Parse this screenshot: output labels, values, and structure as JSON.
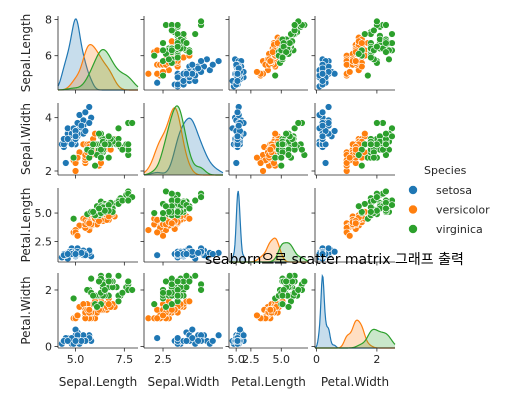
{
  "chart_data": {
    "type": "scatter",
    "subtype": "pairplot",
    "title": "seaborn으로 scatter matrix 그래프 출력",
    "variables": [
      "Sepal.Length",
      "Sepal.Width",
      "Petal.Length",
      "Petal.Width"
    ],
    "diagonal": "kde",
    "legend": {
      "title": "Species",
      "placement": "right",
      "entries": [
        "setosa",
        "versicolor",
        "virginica"
      ]
    },
    "colors": {
      "setosa": "#1f77b4",
      "versicolor": "#ff7f0e",
      "virginica": "#2ca02c"
    },
    "axes": {
      "Sepal.Length": {
        "range": [
          4.1,
          8.2
        ],
        "ticks": [
          5.0,
          7.5
        ],
        "tick_labels": [
          "5.0",
          "7.5"
        ],
        "row_ticks": [
          6,
          8
        ],
        "row_tick_labels": [
          "6",
          "8"
        ]
      },
      "Sepal.Width": {
        "range": [
          1.85,
          4.55
        ],
        "ticks": [
          2.5,
          5.0
        ],
        "tick_labels": [
          "2.5",
          "5.0"
        ],
        "row_ticks": [
          2,
          4
        ],
        "row_tick_labels": [
          "2",
          "4"
        ]
      },
      "Petal.Length": {
        "range": [
          0.7,
          7.2
        ],
        "ticks": [
          2.5,
          5.0
        ],
        "tick_labels": [
          "2.5",
          "5.0"
        ],
        "row_ticks": [
          2.5,
          5.0
        ],
        "row_tick_labels": [
          "2.5",
          "5.0"
        ]
      },
      "Petal.Width": {
        "range": [
          -0.05,
          2.6
        ],
        "ticks": [
          0,
          2
        ],
        "tick_labels": [
          "0",
          "2"
        ],
        "row_ticks": [
          0,
          2
        ],
        "row_tick_labels": [
          "0",
          "2"
        ]
      }
    },
    "series": [
      {
        "name": "setosa",
        "points": [
          [
            5.1,
            3.5,
            1.4,
            0.2
          ],
          [
            4.9,
            3.0,
            1.4,
            0.2
          ],
          [
            4.7,
            3.2,
            1.3,
            0.2
          ],
          [
            4.6,
            3.1,
            1.5,
            0.2
          ],
          [
            5.0,
            3.6,
            1.4,
            0.2
          ],
          [
            5.4,
            3.9,
            1.7,
            0.4
          ],
          [
            4.6,
            3.4,
            1.4,
            0.3
          ],
          [
            5.0,
            3.4,
            1.5,
            0.2
          ],
          [
            4.4,
            2.9,
            1.4,
            0.2
          ],
          [
            4.9,
            3.1,
            1.5,
            0.1
          ],
          [
            5.4,
            3.7,
            1.5,
            0.2
          ],
          [
            4.8,
            3.4,
            1.6,
            0.2
          ],
          [
            4.8,
            3.0,
            1.4,
            0.1
          ],
          [
            4.3,
            3.0,
            1.1,
            0.1
          ],
          [
            5.8,
            4.0,
            1.2,
            0.2
          ],
          [
            5.7,
            4.4,
            1.5,
            0.4
          ],
          [
            5.4,
            3.9,
            1.3,
            0.4
          ],
          [
            5.1,
            3.5,
            1.4,
            0.3
          ],
          [
            5.7,
            3.8,
            1.7,
            0.3
          ],
          [
            5.1,
            3.8,
            1.5,
            0.3
          ],
          [
            5.4,
            3.4,
            1.7,
            0.2
          ],
          [
            5.1,
            3.7,
            1.5,
            0.4
          ],
          [
            4.6,
            3.6,
            1.0,
            0.2
          ],
          [
            5.1,
            3.3,
            1.7,
            0.5
          ],
          [
            4.8,
            3.4,
            1.9,
            0.2
          ],
          [
            5.0,
            3.0,
            1.6,
            0.2
          ],
          [
            5.0,
            3.4,
            1.6,
            0.4
          ],
          [
            5.2,
            3.5,
            1.5,
            0.2
          ],
          [
            5.2,
            3.4,
            1.4,
            0.2
          ],
          [
            4.7,
            3.2,
            1.6,
            0.2
          ],
          [
            4.8,
            3.1,
            1.6,
            0.2
          ],
          [
            5.4,
            3.4,
            1.5,
            0.4
          ],
          [
            5.2,
            4.1,
            1.5,
            0.1
          ],
          [
            5.5,
            4.2,
            1.4,
            0.2
          ],
          [
            4.9,
            3.1,
            1.5,
            0.2
          ],
          [
            5.0,
            3.2,
            1.2,
            0.2
          ],
          [
            5.5,
            3.5,
            1.3,
            0.2
          ],
          [
            4.9,
            3.6,
            1.4,
            0.1
          ],
          [
            4.4,
            3.0,
            1.3,
            0.2
          ],
          [
            5.1,
            3.4,
            1.5,
            0.2
          ],
          [
            5.0,
            3.5,
            1.3,
            0.3
          ],
          [
            4.5,
            2.3,
            1.3,
            0.3
          ],
          [
            4.4,
            3.2,
            1.3,
            0.2
          ],
          [
            5.0,
            3.5,
            1.6,
            0.6
          ],
          [
            5.1,
            3.8,
            1.9,
            0.4
          ],
          [
            4.8,
            3.0,
            1.4,
            0.3
          ],
          [
            5.1,
            3.8,
            1.6,
            0.2
          ],
          [
            4.6,
            3.2,
            1.4,
            0.2
          ],
          [
            5.3,
            3.7,
            1.5,
            0.2
          ],
          [
            5.0,
            3.3,
            1.4,
            0.2
          ]
        ]
      },
      {
        "name": "versicolor",
        "points": [
          [
            7.0,
            3.2,
            4.7,
            1.4
          ],
          [
            6.4,
            3.2,
            4.5,
            1.5
          ],
          [
            6.9,
            3.1,
            4.9,
            1.5
          ],
          [
            5.5,
            2.3,
            4.0,
            1.3
          ],
          [
            6.5,
            2.8,
            4.6,
            1.5
          ],
          [
            5.7,
            2.8,
            4.5,
            1.3
          ],
          [
            6.3,
            3.3,
            4.7,
            1.6
          ],
          [
            4.9,
            2.4,
            3.3,
            1.0
          ],
          [
            6.6,
            2.9,
            4.6,
            1.3
          ],
          [
            5.2,
            2.7,
            3.9,
            1.4
          ],
          [
            5.0,
            2.0,
            3.5,
            1.0
          ],
          [
            5.9,
            3.0,
            4.2,
            1.5
          ],
          [
            6.0,
            2.2,
            4.0,
            1.0
          ],
          [
            6.1,
            2.9,
            4.7,
            1.4
          ],
          [
            5.6,
            2.9,
            3.6,
            1.3
          ],
          [
            6.7,
            3.1,
            4.4,
            1.4
          ],
          [
            5.6,
            3.0,
            4.5,
            1.5
          ],
          [
            5.8,
            2.7,
            4.1,
            1.0
          ],
          [
            6.2,
            2.2,
            4.5,
            1.5
          ],
          [
            5.6,
            2.5,
            3.9,
            1.1
          ],
          [
            5.9,
            3.2,
            4.8,
            1.8
          ],
          [
            6.1,
            2.8,
            4.0,
            1.3
          ],
          [
            6.3,
            2.5,
            4.9,
            1.5
          ],
          [
            6.1,
            2.8,
            4.7,
            1.2
          ],
          [
            6.4,
            2.9,
            4.3,
            1.3
          ],
          [
            6.6,
            3.0,
            4.4,
            1.4
          ],
          [
            6.8,
            2.8,
            4.8,
            1.4
          ],
          [
            6.7,
            3.0,
            5.0,
            1.7
          ],
          [
            6.0,
            2.9,
            4.5,
            1.5
          ],
          [
            5.7,
            2.6,
            3.5,
            1.0
          ],
          [
            5.5,
            2.4,
            3.8,
            1.1
          ],
          [
            5.5,
            2.4,
            3.7,
            1.0
          ],
          [
            5.8,
            2.7,
            3.9,
            1.2
          ],
          [
            6.0,
            2.7,
            5.1,
            1.6
          ],
          [
            5.4,
            3.0,
            4.5,
            1.5
          ],
          [
            6.0,
            3.4,
            4.5,
            1.6
          ],
          [
            6.7,
            3.1,
            4.7,
            1.5
          ],
          [
            6.3,
            2.3,
            4.4,
            1.3
          ],
          [
            5.6,
            3.0,
            4.1,
            1.3
          ],
          [
            5.5,
            2.5,
            4.0,
            1.3
          ],
          [
            5.5,
            2.6,
            4.4,
            1.2
          ],
          [
            6.1,
            3.0,
            4.6,
            1.4
          ],
          [
            5.8,
            2.6,
            4.0,
            1.2
          ],
          [
            5.0,
            2.3,
            3.3,
            1.0
          ],
          [
            5.6,
            2.7,
            4.2,
            1.3
          ],
          [
            5.7,
            3.0,
            4.2,
            1.2
          ],
          [
            5.7,
            2.9,
            4.2,
            1.3
          ],
          [
            6.2,
            2.9,
            4.3,
            1.3
          ],
          [
            5.1,
            2.5,
            3.0,
            1.1
          ],
          [
            5.7,
            2.8,
            4.1,
            1.3
          ]
        ]
      },
      {
        "name": "virginica",
        "points": [
          [
            6.3,
            3.3,
            6.0,
            2.5
          ],
          [
            5.8,
            2.7,
            5.1,
            1.9
          ],
          [
            7.1,
            3.0,
            5.9,
            2.1
          ],
          [
            6.3,
            2.9,
            5.6,
            1.8
          ],
          [
            6.5,
            3.0,
            5.8,
            2.2
          ],
          [
            7.6,
            3.0,
            6.6,
            2.1
          ],
          [
            4.9,
            2.5,
            4.5,
            1.7
          ],
          [
            7.3,
            2.9,
            6.3,
            1.8
          ],
          [
            6.7,
            2.5,
            5.8,
            1.8
          ],
          [
            7.2,
            3.6,
            6.1,
            2.5
          ],
          [
            6.5,
            3.2,
            5.1,
            2.0
          ],
          [
            6.4,
            2.7,
            5.3,
            1.9
          ],
          [
            6.8,
            3.0,
            5.5,
            2.1
          ],
          [
            5.7,
            2.5,
            5.0,
            2.0
          ],
          [
            5.8,
            2.8,
            5.1,
            2.4
          ],
          [
            6.4,
            3.2,
            5.3,
            2.3
          ],
          [
            6.5,
            3.0,
            5.5,
            1.8
          ],
          [
            7.7,
            3.8,
            6.7,
            2.2
          ],
          [
            7.7,
            2.6,
            6.9,
            2.3
          ],
          [
            6.0,
            2.2,
            5.0,
            1.5
          ],
          [
            6.9,
            3.2,
            5.7,
            2.3
          ],
          [
            5.6,
            2.8,
            4.9,
            2.0
          ],
          [
            7.7,
            2.8,
            6.7,
            2.0
          ],
          [
            6.3,
            2.7,
            4.9,
            1.8
          ],
          [
            6.7,
            3.3,
            5.7,
            2.1
          ],
          [
            7.2,
            3.2,
            6.0,
            1.8
          ],
          [
            6.2,
            2.8,
            4.8,
            1.8
          ],
          [
            6.1,
            3.0,
            4.9,
            1.8
          ],
          [
            6.4,
            2.8,
            5.6,
            2.1
          ],
          [
            7.2,
            3.0,
            5.8,
            1.6
          ],
          [
            7.4,
            2.8,
            6.1,
            1.9
          ],
          [
            7.9,
            3.8,
            6.4,
            2.0
          ],
          [
            6.4,
            2.8,
            5.6,
            2.2
          ],
          [
            6.3,
            2.8,
            5.1,
            1.5
          ],
          [
            6.1,
            2.6,
            5.6,
            1.4
          ],
          [
            7.7,
            3.0,
            6.1,
            2.3
          ],
          [
            6.3,
            3.4,
            5.6,
            2.4
          ],
          [
            6.4,
            3.1,
            5.5,
            1.8
          ],
          [
            6.0,
            3.0,
            4.8,
            1.8
          ],
          [
            6.9,
            3.1,
            5.4,
            2.1
          ],
          [
            6.7,
            3.1,
            5.6,
            2.4
          ],
          [
            6.9,
            3.1,
            5.1,
            2.3
          ],
          [
            5.8,
            2.7,
            5.1,
            1.9
          ],
          [
            6.8,
            3.2,
            5.9,
            2.3
          ],
          [
            6.7,
            3.3,
            5.7,
            2.5
          ],
          [
            6.7,
            3.0,
            5.2,
            2.3
          ],
          [
            6.3,
            2.5,
            5.0,
            1.9
          ],
          [
            6.5,
            3.0,
            5.2,
            2.0
          ],
          [
            6.2,
            3.4,
            5.4,
            2.3
          ],
          [
            5.9,
            3.0,
            5.1,
            1.8
          ]
        ]
      }
    ]
  }
}
